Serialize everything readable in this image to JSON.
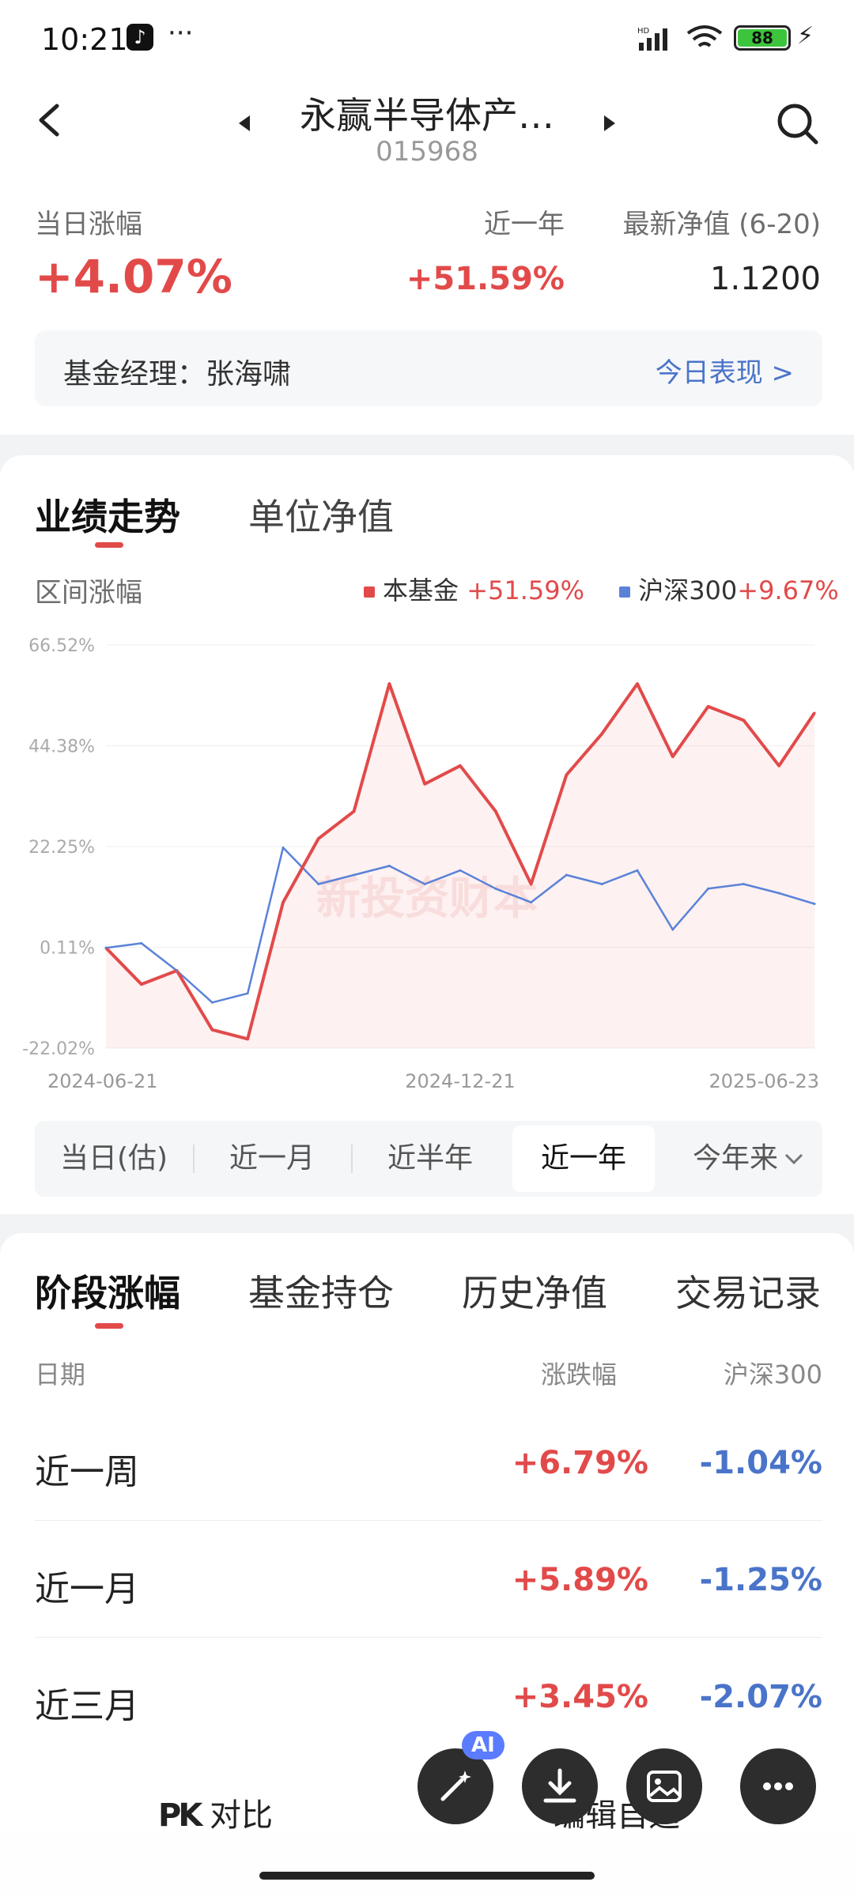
{
  "status": {
    "time": "10:21",
    "more": "···",
    "battery": "88"
  },
  "header": {
    "title": "永赢半导体产…",
    "code": "015968"
  },
  "summary": {
    "today_label": "当日涨幅",
    "today_value": "+4.07%",
    "year_label": "近一年",
    "year_value": "+51.59%",
    "nav_label": "最新净值 (6-20)",
    "nav_value": "1.1200",
    "manager_label": "基金经理：张海啸",
    "today_perf_link": "今日表现 >"
  },
  "perf": {
    "tabs": [
      "业绩走势",
      "单位净值"
    ],
    "range_label": "区间涨幅",
    "legend": [
      {
        "name": "本基金",
        "value": "+51.59%",
        "color": "#e24a4a"
      },
      {
        "name": "沪深300",
        "value": "+9.67%",
        "color": "#5a82d8"
      }
    ],
    "watermark": "新投资财本",
    "segments": [
      "当日(估)",
      "近一月",
      "近半年",
      "近一年",
      "今年来"
    ],
    "active_segment": "近一年"
  },
  "chart_data": {
    "type": "line",
    "x": [
      "2024-06-21",
      "2024-07-15",
      "2024-08-15",
      "2024-09-10",
      "2024-09-24",
      "2024-09-30",
      "2024-10-08",
      "2024-10-25",
      "2024-11-08",
      "2024-11-25",
      "2024-12-21",
      "2025-01-10",
      "2025-01-27",
      "2025-02-20",
      "2025-03-10",
      "2025-03-25",
      "2025-04-08",
      "2025-04-25",
      "2025-05-15",
      "2025-06-05",
      "2025-06-23"
    ],
    "series": [
      {
        "name": "本基金",
        "color": "#e24a4a",
        "values": [
          0,
          -8,
          -5,
          -18,
          -20,
          10,
          24,
          30,
          58,
          36,
          40,
          30,
          14,
          38,
          47,
          58,
          42,
          53,
          50,
          40,
          51.59
        ]
      },
      {
        "name": "沪深300",
        "color": "#5a82d8",
        "values": [
          0,
          1,
          -5,
          -12,
          -10,
          22,
          14,
          16,
          18,
          14,
          17,
          13,
          10,
          16,
          14,
          17,
          4,
          13,
          14,
          12,
          9.67
        ]
      }
    ],
    "y_ticks": [
      "66.52%",
      "44.38%",
      "22.25%",
      "0.11%",
      "-22.02%"
    ],
    "x_ticks": [
      "2024-06-21",
      "2024-12-21",
      "2025-06-23"
    ],
    "ylim": [
      -22.02,
      66.52
    ]
  },
  "periods": {
    "tabs": [
      "阶段涨幅",
      "基金持仓",
      "历史净值",
      "交易记录"
    ],
    "col_date": "日期",
    "col_change": "涨跌幅",
    "col_index": "沪深300",
    "rows": [
      {
        "label": "近一周",
        "fund": "+6.79%",
        "index": "-1.04%"
      },
      {
        "label": "近一月",
        "fund": "+5.89%",
        "index": "-1.25%"
      },
      {
        "label": "近三月",
        "fund": "+3.45%",
        "index": "-2.07%"
      }
    ]
  },
  "bottom": {
    "compare": "对比",
    "edit": "编辑自选",
    "ai": "AI"
  }
}
